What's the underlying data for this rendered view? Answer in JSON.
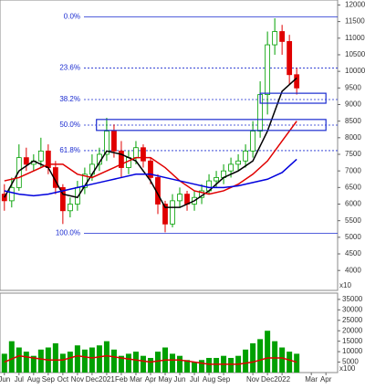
{
  "chart_data": {
    "type": "candlestick",
    "price_unit": "x10",
    "volume_unit": "x100",
    "xlim": [
      -0.3,
      22.8
    ],
    "xticks": [
      {
        "value": 0,
        "label": "Jun"
      },
      {
        "value": 1,
        "label": "Jul"
      },
      {
        "value": 2,
        "label": "Aug"
      },
      {
        "value": 3,
        "label": "Sep"
      },
      {
        "value": 4,
        "label": "Oct"
      },
      {
        "value": 5,
        "label": "Nov"
      },
      {
        "value": 6,
        "label": "Dec"
      },
      {
        "value": 7,
        "label": "2021"
      },
      {
        "value": 8,
        "label": "Feb"
      },
      {
        "value": 9,
        "label": "Mar"
      },
      {
        "value": 10,
        "label": "Apr"
      },
      {
        "value": 11,
        "label": "May"
      },
      {
        "value": 12,
        "label": "Jun"
      },
      {
        "value": 13,
        "label": "Jul"
      },
      {
        "value": 14,
        "label": "Aug"
      },
      {
        "value": 15,
        "label": "Sep"
      },
      {
        "value": 17,
        "label": "Nov"
      },
      {
        "value": 18,
        "label": "Dec"
      },
      {
        "value": 19,
        "label": "2022"
      },
      {
        "value": 21,
        "label": "Mar"
      },
      {
        "value": 22,
        "label": "Apr"
      }
    ],
    "ylim": [
      3400,
      12150
    ],
    "yticks": [
      4000,
      4500,
      5000,
      5500,
      6000,
      6500,
      7000,
      7500,
      8000,
      8500,
      9000,
      9500,
      10000,
      10500,
      11000,
      11500,
      12000
    ],
    "up_color": "#00a000",
    "down_color": "#e00000",
    "candles": {
      "x": [
        0,
        0.5,
        1,
        1.5,
        2,
        2.5,
        3,
        3.5,
        4,
        4.5,
        5,
        5.5,
        6,
        6.5,
        7,
        7.5,
        8,
        8.5,
        9,
        9.5,
        10,
        10.5,
        11,
        11.5,
        12,
        12.5,
        13,
        13.5,
        14,
        14.5,
        15,
        15.5,
        16,
        16.5,
        17,
        17.5,
        18,
        18.5,
        19,
        19.5,
        20
      ],
      "open": [
        6300,
        6100,
        6500,
        7400,
        7200,
        7300,
        7600,
        7100,
        6500,
        5800,
        6000,
        6500,
        6900,
        7200,
        7500,
        8200,
        7600,
        7100,
        7400,
        7700,
        7300,
        6800,
        6000,
        5400,
        6100,
        6300,
        6000,
        6200,
        6400,
        6700,
        6800,
        7000,
        7200,
        7300,
        7600,
        8200,
        9300,
        10800,
        11200,
        10900,
        9900
      ],
      "high": [
        6600,
        6800,
        7800,
        7700,
        7500,
        8000,
        7800,
        7300,
        6600,
        6200,
        6700,
        7100,
        7500,
        7700,
        8600,
        8400,
        7900,
        7600,
        7900,
        7800,
        7400,
        6900,
        6100,
        6300,
        6500,
        6400,
        6400,
        6600,
        6900,
        7000,
        7200,
        7400,
        7500,
        7800,
        8500,
        9700,
        11200,
        11600,
        11400,
        11100,
        10100
      ],
      "low": [
        5800,
        5900,
        6400,
        7000,
        7000,
        7100,
        6900,
        6300,
        5400,
        5600,
        5800,
        6300,
        6700,
        7000,
        7300,
        7400,
        6800,
        6900,
        7200,
        7100,
        6600,
        5700,
        5150,
        5300,
        5900,
        5800,
        5800,
        6000,
        6300,
        6500,
        6600,
        6800,
        7000,
        7100,
        7400,
        8000,
        8700,
        10500,
        10500,
        9600,
        9300
      ],
      "close": [
        6100,
        6500,
        7400,
        7200,
        7300,
        7600,
        7100,
        6500,
        5800,
        6000,
        6500,
        6900,
        7200,
        7500,
        8200,
        7600,
        7100,
        7400,
        7700,
        7300,
        6800,
        6000,
        5400,
        6100,
        6300,
        6000,
        6200,
        6400,
        6700,
        6800,
        7000,
        7200,
        7300,
        7600,
        8200,
        9300,
        10800,
        11200,
        10900,
        9900,
        9500
      ],
      "volume": [
        9000,
        15000,
        12000,
        10000,
        8000,
        11000,
        12000,
        14000,
        9000,
        10000,
        13000,
        11000,
        12000,
        13000,
        15000,
        11000,
        8000,
        9000,
        10000,
        8000,
        7000,
        10000,
        12000,
        9000,
        8000,
        6000,
        5000,
        6000,
        7000,
        7000,
        8000,
        7000,
        8000,
        11000,
        14000,
        16000,
        20000,
        15000,
        12000,
        10000,
        9000
      ]
    },
    "ma_x": [
      0,
      1,
      2,
      3,
      4,
      5,
      6,
      7,
      8,
      9,
      10,
      11,
      12,
      13,
      14,
      15,
      16,
      17,
      18,
      19,
      20
    ],
    "series": [
      {
        "color": "#000000",
        "values": [
          6200,
          7000,
          7300,
          7100,
          6300,
          6200,
          6900,
          7600,
          7500,
          7300,
          6700,
          5900,
          5900,
          6100,
          6400,
          6800,
          7000,
          7300,
          8200,
          9400,
          9800
        ]
      },
      {
        "color": "#e00000",
        "values": [
          6700,
          6800,
          7000,
          7200,
          7200,
          6900,
          6800,
          7000,
          7200,
          7400,
          7400,
          7100,
          6700,
          6400,
          6300,
          6400,
          6600,
          6900,
          7300,
          7900,
          8500
        ]
      },
      {
        "color": "#0000dd",
        "values": [
          6400,
          6300,
          6250,
          6300,
          6400,
          6500,
          6600,
          6700,
          6800,
          6900,
          6900,
          6800,
          6700,
          6600,
          6500,
          6500,
          6550,
          6650,
          6750,
          6950,
          7350
        ]
      }
    ],
    "fib_color": "#1a2bd0",
    "fib_levels": [
      {
        "value": 11640,
        "label": "0.0%"
      },
      {
        "value": 10102,
        "label": "23.6%"
      },
      {
        "value": 9150,
        "label": "38.2%"
      },
      {
        "value": 8380,
        "label": "50.0%"
      },
      {
        "value": 7612,
        "label": "61.8%"
      },
      {
        "value": 5123,
        "label": "100.0%"
      }
    ],
    "boxes": [
      {
        "x": [
          17.5,
          22
        ],
        "y": [
          9040,
          9340
        ]
      },
      {
        "x": [
          6.3,
          22
        ],
        "y": [
          8220,
          8550
        ]
      }
    ],
    "vlim": [
      0,
      38000
    ],
    "vticks": [
      5000,
      10000,
      15000,
      20000,
      25000,
      30000,
      35000
    ],
    "volume_ma": [
      5000,
      8000,
      7000,
      6000,
      6000,
      8000,
      7000,
      8000,
      7000,
      6000,
      5000,
      6000,
      6000,
      5000,
      4000,
      4000,
      4000,
      5000,
      7000,
      7000,
      5000
    ]
  }
}
